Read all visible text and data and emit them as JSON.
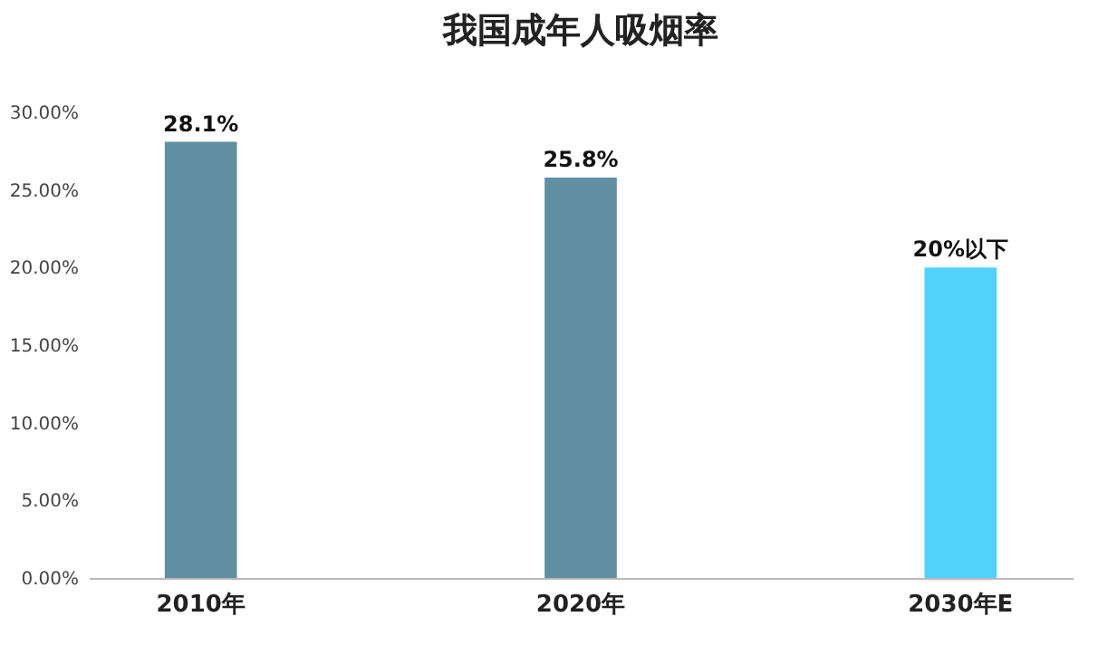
{
  "chart_data": {
    "type": "bar",
    "title": "我国成年人吸烟率",
    "categories": [
      "2010年",
      "2020年",
      "2030年E"
    ],
    "values": [
      28.1,
      25.8,
      20
    ],
    "colors": [
      "#5f8fa1",
      "#5f8fa1",
      "#4fd3fb"
    ],
    "value_labels": [
      "28.1%",
      "25.8%",
      "20%以下"
    ],
    "ylim": [
      0,
      30
    ],
    "yticks": [
      {
        "value": 0,
        "label": "0.00%"
      },
      {
        "value": 5,
        "label": "5.00%"
      },
      {
        "value": 10,
        "label": "10.00%"
      },
      {
        "value": 15,
        "label": "15.00%"
      },
      {
        "value": 20,
        "label": "20.00%"
      },
      {
        "value": 25,
        "label": "25.00%"
      },
      {
        "value": 30,
        "label": "30.00%"
      }
    ],
    "grid": false
  }
}
